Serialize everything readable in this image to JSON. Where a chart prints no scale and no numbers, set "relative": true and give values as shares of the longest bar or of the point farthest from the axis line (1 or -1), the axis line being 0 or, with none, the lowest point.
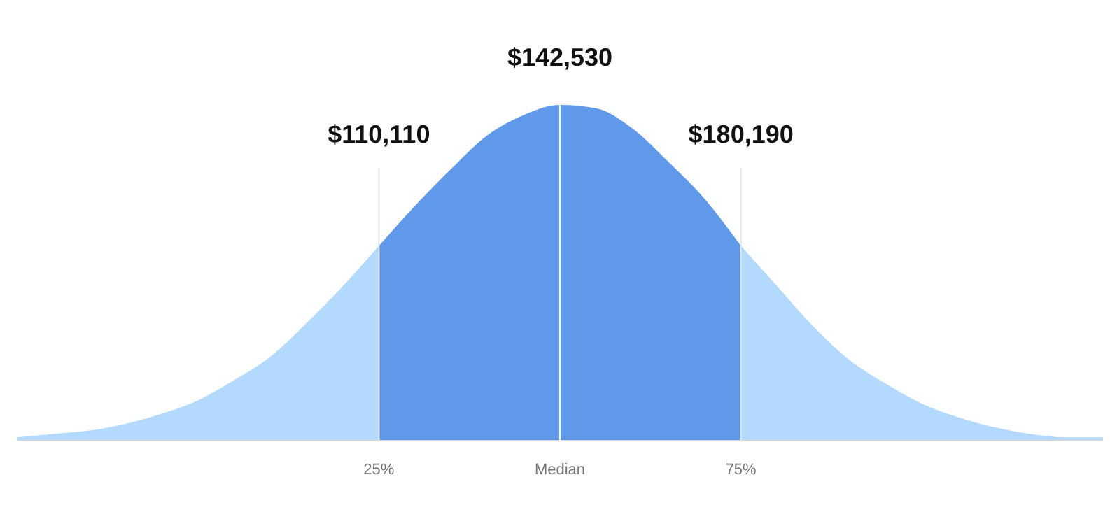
{
  "chart_data": {
    "type": "area",
    "relative": true,
    "categories": [
      null,
      null,
      null,
      null,
      null,
      null,
      null,
      null,
      null,
      null,
      "25%",
      null,
      null,
      null,
      null,
      "Median",
      null,
      null,
      null,
      null,
      "75%",
      null,
      null,
      null,
      null,
      null,
      null,
      null,
      null,
      null,
      null
    ],
    "series": [
      {
        "color": "#b3dafe",
        "values": [
          0.01,
          0.02,
          0.03,
          0.05,
          0.08,
          0.12,
          0.18,
          0.25,
          0.35,
          0.46,
          0.58,
          null,
          null,
          null,
          null,
          null,
          null,
          null,
          null,
          null,
          0.58,
          0.46,
          0.34,
          0.24,
          0.17,
          0.11,
          0.07,
          0.04,
          0.02,
          0.01,
          0.01
        ]
      },
      {
        "color": "#6199ea",
        "values": [
          null,
          null,
          null,
          null,
          null,
          null,
          null,
          null,
          null,
          null,
          0.58,
          0.7,
          0.81,
          0.91,
          0.97,
          1,
          0.99,
          0.93,
          0.83,
          0.72,
          0.58,
          null,
          null,
          null,
          null,
          null,
          null,
          null,
          null,
          null,
          null
        ]
      }
    ],
    "ref_lines": [
      {
        "axis": "x",
        "value": "25%",
        "label": "$110,110",
        "color": "#e6e6e6"
      },
      {
        "axis": "x",
        "value": "Median",
        "label": "$142,530",
        "color": "#ffffff"
      },
      {
        "axis": "x",
        "value": "75%",
        "label": "$180,190",
        "color": "#e6e6e6"
      }
    ]
  }
}
